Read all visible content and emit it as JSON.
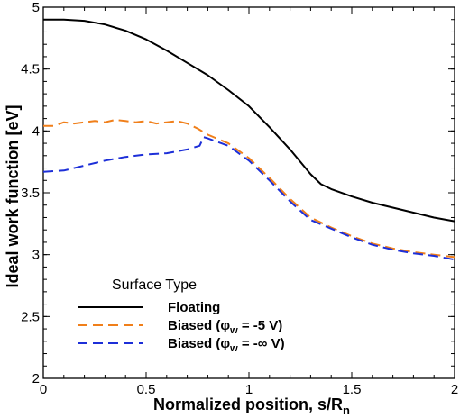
{
  "chart_data": {
    "type": "line",
    "xlabel": "Normalized position, s/R",
    "xlabel_sub": "n",
    "ylabel": "Ideal work function [eV]",
    "xlim": [
      0,
      2
    ],
    "ylim": [
      2,
      5
    ],
    "x_ticks": [
      "0",
      "0.5",
      "1",
      "1.5",
      "2"
    ],
    "y_ticks": [
      "2",
      "2.5",
      "3",
      "3.5",
      "4",
      "4.5",
      "5"
    ],
    "legend_title": "Surface Type",
    "legend_position": "bottom-left",
    "series": [
      {
        "name": "Floating",
        "label_parts": [
          "Floating"
        ],
        "color": "#000000",
        "dash": "solid",
        "x": [
          0,
          0.1,
          0.2,
          0.3,
          0.4,
          0.5,
          0.6,
          0.7,
          0.8,
          0.9,
          1.0,
          1.1,
          1.2,
          1.3,
          1.35,
          1.4,
          1.5,
          1.6,
          1.7,
          1.8,
          1.9,
          2.0
        ],
        "y": [
          4.9,
          4.9,
          4.89,
          4.86,
          4.81,
          4.74,
          4.65,
          4.55,
          4.45,
          4.33,
          4.2,
          4.03,
          3.85,
          3.65,
          3.57,
          3.53,
          3.47,
          3.42,
          3.38,
          3.34,
          3.3,
          3.27
        ]
      },
      {
        "name": "Biased (φw = -5 V)",
        "label_parts": [
          "Biased (φ",
          "w",
          " = -5 V)"
        ],
        "color": "#f07f1a",
        "dash": "dashed",
        "x": [
          0,
          0.05,
          0.1,
          0.15,
          0.2,
          0.25,
          0.3,
          0.35,
          0.4,
          0.45,
          0.5,
          0.55,
          0.6,
          0.65,
          0.7,
          0.75,
          0.8,
          0.9,
          1.0,
          1.1,
          1.2,
          1.3,
          1.4,
          1.5,
          1.6,
          1.7,
          1.8,
          1.9,
          2.0
        ],
        "y": [
          4.04,
          4.04,
          4.07,
          4.06,
          4.07,
          4.08,
          4.07,
          4.09,
          4.08,
          4.07,
          4.08,
          4.06,
          4.07,
          4.08,
          4.06,
          4.02,
          3.97,
          3.9,
          3.78,
          3.62,
          3.45,
          3.3,
          3.22,
          3.15,
          3.09,
          3.05,
          3.02,
          3.0,
          2.98
        ]
      },
      {
        "name": "Biased (φw = -∞ V)",
        "label_parts": [
          "Biased (φ",
          "w",
          " = -∞ V)"
        ],
        "color": "#1d2fd8",
        "dash": "dashed",
        "x": [
          0,
          0.1,
          0.2,
          0.3,
          0.4,
          0.5,
          0.6,
          0.7,
          0.76,
          0.78,
          0.8,
          0.9,
          1.0,
          1.1,
          1.2,
          1.3,
          1.4,
          1.5,
          1.6,
          1.7,
          1.8,
          1.9,
          2.0
        ],
        "y": [
          3.67,
          3.68,
          3.72,
          3.76,
          3.79,
          3.81,
          3.82,
          3.85,
          3.88,
          3.95,
          3.94,
          3.88,
          3.76,
          3.6,
          3.43,
          3.28,
          3.21,
          3.14,
          3.08,
          3.04,
          3.01,
          2.99,
          2.96
        ]
      }
    ]
  }
}
